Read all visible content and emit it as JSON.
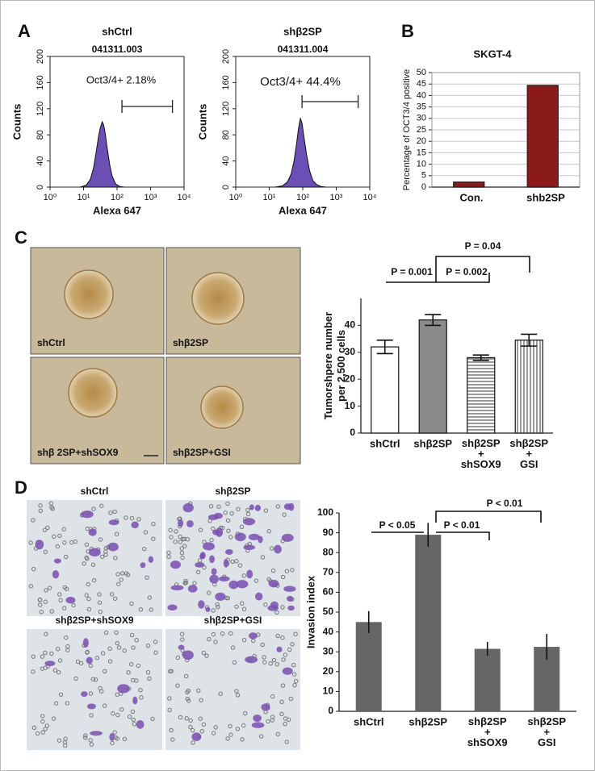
{
  "panel_labels": [
    "A",
    "B",
    "C",
    "D"
  ],
  "panel_c_images": [
    "shCtrl",
    "shβ2SP",
    "shβ 2SP+shSOX9",
    "shβ2SP+GSI"
  ],
  "panel_d_images": [
    "shCtrl",
    "shβ2SP",
    "shβ2SP+shSOX9",
    "shβ2SP+GSI"
  ],
  "chart_data": [
    {
      "type": "area",
      "title": "shCtrl",
      "subtitle": "041311.003",
      "annotations": [
        "Oct3/4+ 2.18%"
      ],
      "xlabel": "Alexa 647",
      "ylabel": "Counts",
      "color": "#6b4fb5",
      "xscale": "log",
      "x": [
        8,
        12,
        16,
        20,
        24,
        28,
        32,
        36,
        40,
        45,
        50,
        60,
        70,
        90,
        120,
        160
      ],
      "values": [
        0,
        3,
        12,
        30,
        55,
        78,
        92,
        100,
        95,
        80,
        62,
        35,
        18,
        5,
        1,
        0
      ],
      "gate": [
        140,
        4500
      ],
      "xlim": [
        1,
        10000
      ],
      "xticks": [
        {
          "value": 1,
          "label": "10⁰"
        },
        {
          "value": 10,
          "label": "10¹"
        },
        {
          "value": 100,
          "label": "10²"
        },
        {
          "value": 1000,
          "label": "10³"
        },
        {
          "value": 10000,
          "label": "10⁴"
        }
      ],
      "ylim": [
        0,
        200
      ],
      "yticks": [
        0,
        40,
        80,
        120,
        160,
        200
      ]
    },
    {
      "type": "area",
      "title": "shβ2SP",
      "subtitle": "041311.004",
      "annotations": [
        "Oct3/4+ 44.4%"
      ],
      "xlabel": "Alexa 647",
      "ylabel": "Counts",
      "color": "#6b4fb5",
      "xscale": "log",
      "x": [
        15,
        25,
        35,
        45,
        55,
        65,
        75,
        85,
        95,
        110,
        130,
        160,
        200,
        260,
        350,
        500
      ],
      "values": [
        0,
        2,
        8,
        20,
        40,
        65,
        90,
        105,
        98,
        75,
        50,
        25,
        10,
        4,
        1,
        0
      ],
      "gate": [
        95,
        4500
      ],
      "xlim": [
        1,
        10000
      ],
      "xticks": [
        {
          "value": 1,
          "label": "10⁰"
        },
        {
          "value": 10,
          "label": "10¹"
        },
        {
          "value": 100,
          "label": "10²"
        },
        {
          "value": 1000,
          "label": "10³"
        },
        {
          "value": 10000,
          "label": "10⁴"
        }
      ],
      "ylim": [
        0,
        200
      ],
      "yticks": [
        0,
        40,
        80,
        120,
        160,
        200
      ]
    },
    {
      "type": "bar",
      "title": "SKGT-4",
      "ylabel": "Percentage of OCT3/4 positive",
      "categories": [
        "Con.",
        "shb2SP"
      ],
      "values": [
        2.18,
        44.4
      ],
      "color": "#8b1a1a",
      "ylim": [
        0,
        50
      ],
      "yticks": [
        0,
        5,
        10,
        15,
        20,
        25,
        30,
        35,
        40,
        45,
        50
      ],
      "grid": true
    },
    {
      "type": "bar",
      "ylabel": "Tumorshpere number\nper 2,500 cells",
      "categories": [
        "shCtrl",
        "shβ2SP",
        "shβ2SP\n+\nshSOX9",
        "shβ2SP\n+\nGSI"
      ],
      "values": [
        32,
        42,
        28,
        34.5
      ],
      "errors": [
        2.5,
        2,
        1,
        2.2
      ],
      "fills": [
        "white",
        "#8a8a8a",
        "hlines",
        "vlines"
      ],
      "annotations": [
        "P = 0.001",
        "P = 0.002",
        "P = 0.04"
      ],
      "ylim": [
        0,
        50
      ],
      "yticks": [
        0,
        10,
        20,
        30,
        40
      ],
      "grid": false
    },
    {
      "type": "bar",
      "ylabel": "Invasion index",
      "categories": [
        "shCtrl",
        "shβ2SP",
        "shβ2SP\n+\nshSOX9",
        "shβ2SP\n+\nGSI"
      ],
      "values": [
        45,
        89,
        31.5,
        32.5
      ],
      "errors": [
        5.5,
        6,
        3.5,
        6.5
      ],
      "color": "#666666",
      "annotations": [
        "P < 0.05",
        "P < 0.01",
        "P < 0.01"
      ],
      "ylim": [
        0,
        100
      ],
      "yticks": [
        0,
        10,
        20,
        30,
        40,
        50,
        60,
        70,
        80,
        90,
        100
      ],
      "grid": false
    }
  ]
}
